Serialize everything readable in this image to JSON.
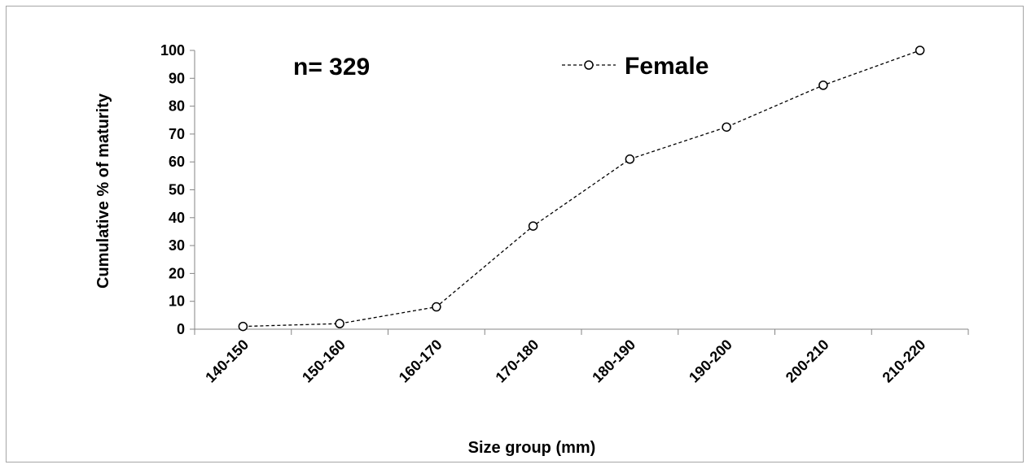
{
  "chart_data": {
    "type": "line",
    "title": "",
    "xlabel": "Size group (mm)",
    "ylabel": "Cumulative % of maturity",
    "annotation": "n= 329",
    "ylim": [
      0,
      100
    ],
    "yticks": [
      0,
      10,
      20,
      30,
      40,
      50,
      60,
      70,
      80,
      90,
      100
    ],
    "categories": [
      "140-150",
      "150-160",
      "160-170",
      "170-180",
      "180-190",
      "190-200",
      "200-210",
      "210-220"
    ],
    "series": [
      {
        "name": "Female",
        "values": [
          1,
          2,
          8,
          37,
          61,
          72.5,
          87.5,
          100
        ],
        "line_style": "dashed",
        "marker": "open-circle",
        "color": "#000000"
      }
    ],
    "legend_position": "top-center",
    "grid": false
  }
}
